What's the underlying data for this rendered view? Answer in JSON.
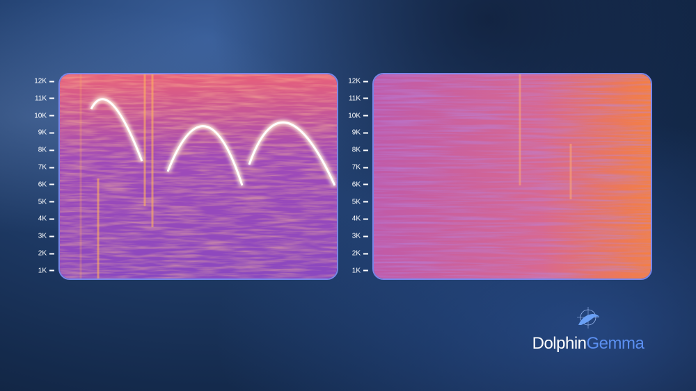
{
  "frequency_axis_labels": [
    "12K",
    "11K",
    "10K",
    "9K",
    "8K",
    "7K",
    "6K",
    "5K",
    "4K",
    "3K",
    "2K",
    "1K"
  ],
  "spectrograms": [
    {
      "description_colors": [
        "#6a3fc8",
        "#e0609a",
        "#ff9a40",
        "#ffffff"
      ],
      "feature": "three arching whistle contours"
    },
    {
      "description_colors": [
        "#8a4fc0",
        "#e8707a",
        "#ff8a3a"
      ],
      "feature": "broadband noise"
    }
  ],
  "logo": {
    "part1": "Dolphin",
    "part2": "Gemma",
    "accent": "#5b8ff0"
  }
}
